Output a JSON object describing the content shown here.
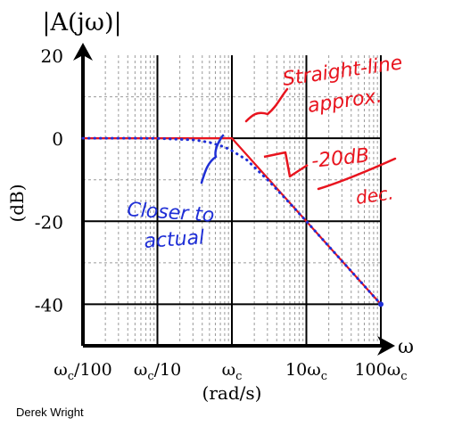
{
  "chart_data": {
    "type": "line",
    "title": "|A(jω)|",
    "ylabel": "(dB)",
    "xlabel": "(rad/s)",
    "x_axis_symbol": "ω",
    "categories": [
      "ωc/100",
      "ωc/10",
      "ωc",
      "10ωc",
      "100ωc"
    ],
    "x_decades": [
      -2,
      -1,
      0,
      1,
      2
    ],
    "x_range": [
      -2,
      2
    ],
    "ylim": [
      -50,
      20
    ],
    "yticks": [
      20,
      0,
      -20,
      -40
    ],
    "ytick_labels": [
      "20",
      "0",
      "-20",
      "-40"
    ],
    "grid": true,
    "series": [
      {
        "values": [
          [
            -2,
            0
          ],
          [
            -1,
            0
          ],
          [
            0,
            0
          ],
          [
            1,
            -20
          ],
          [
            2,
            -40
          ]
        ],
        "color": "#e8141e",
        "style": "solid"
      },
      {
        "values": [
          [
            -2,
            0
          ],
          [
            -1.5,
            0
          ],
          [
            -1,
            -0.04
          ],
          [
            -0.5,
            -0.4
          ],
          [
            -0.3,
            -1
          ],
          [
            -0.1,
            -2.1
          ],
          [
            0,
            -3
          ],
          [
            0.2,
            -5.2
          ],
          [
            0.5,
            -10.4
          ],
          [
            0.8,
            -16.1
          ],
          [
            1,
            -20
          ],
          [
            1.5,
            -30
          ],
          [
            2,
            -40
          ]
        ],
        "color": "#1f2fd6",
        "style": "dotted"
      }
    ],
    "annotations": [
      {
        "text": "Straight-line",
        "color": "#e8141e"
      },
      {
        "text": "approx.",
        "color": "#e8141e"
      },
      {
        "text": "-20dB",
        "color": "#e8141e"
      },
      {
        "text": "dec.",
        "color": "#e8141e"
      },
      {
        "text": "Closer to",
        "color": "#1f2fd6"
      },
      {
        "text": "actual",
        "color": "#1f2fd6"
      }
    ]
  },
  "credit": "Derek Wright"
}
